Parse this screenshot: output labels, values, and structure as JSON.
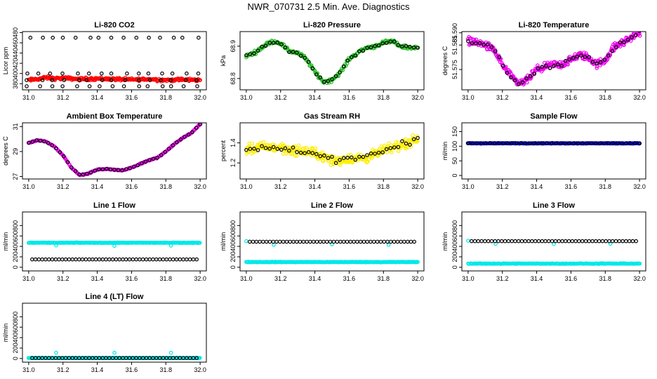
{
  "page_title": "NWR_070731  2.5 Min. Ave. Diagnostics",
  "chart_data": [
    {
      "type": "scatter",
      "title": "Li-820 CO2",
      "ylabel": "Licor ppm",
      "xlim": [
        30.98,
        32.02
      ],
      "ylim": [
        368,
        482
      ],
      "xticks": [
        "31.0",
        "31.2",
        "31.4",
        "31.6",
        "31.8",
        "32.0"
      ],
      "yticks": [
        380,
        400,
        420,
        440,
        460,
        480
      ],
      "series": [
        {
          "color": "#ff0000",
          "kind": "noisy",
          "x": [
            31.0,
            31.05,
            31.1,
            31.15,
            31.2,
            31.3,
            31.4,
            31.5,
            31.6,
            31.7,
            31.8,
            31.9,
            32.0
          ],
          "y": [
            387,
            389,
            392,
            390,
            391,
            389,
            390,
            389,
            388,
            389,
            387,
            388,
            387
          ],
          "noise": 4,
          "n": 260
        },
        {
          "color": "#000000",
          "kind": "pattern",
          "x": [
            31.0,
            31.07,
            31.14,
            31.21,
            31.28,
            31.35,
            31.42,
            31.49,
            31.56,
            31.63,
            31.7,
            31.77,
            31.84,
            31.91,
            31.98
          ],
          "levels": [
            375,
            387,
            400,
            470
          ]
        }
      ]
    },
    {
      "type": "scatter",
      "title": "Li-820 Pressure",
      "ylabel": "kPa",
      "xlim": [
        30.98,
        32.02
      ],
      "ylim": [
        68.765,
        68.945
      ],
      "xticks": [
        "31.0",
        "31.2",
        "31.4",
        "31.6",
        "31.8",
        "32.0"
      ],
      "yticks": [
        68.8,
        68.9
      ],
      "series": [
        {
          "color": "#22bb22",
          "kind": "noisy",
          "x": [
            31.0,
            31.05,
            31.1,
            31.15,
            31.2,
            31.25,
            31.3,
            31.35,
            31.4,
            31.45,
            31.5,
            31.55,
            31.6,
            31.65,
            31.7,
            31.75,
            31.8,
            31.85,
            31.9,
            31.95,
            32.0
          ],
          "y": [
            68.87,
            68.88,
            68.9,
            68.915,
            68.91,
            68.885,
            68.88,
            68.86,
            68.82,
            68.79,
            68.795,
            68.82,
            68.86,
            68.88,
            68.895,
            68.9,
            68.91,
            68.915,
            68.9,
            68.895,
            68.895
          ],
          "noise": 0.008,
          "n": 220
        },
        {
          "color": "#000000",
          "kind": "follow",
          "noise": 0.006,
          "n": 45
        }
      ]
    },
    {
      "type": "scatter",
      "title": "Li-820 Temperature",
      "ylabel": "degrees C",
      "xlim": [
        30.98,
        32.02
      ],
      "ylim": [
        51.5667,
        51.5905
      ],
      "xticks": [
        "31.0",
        "31.2",
        "31.4",
        "31.6",
        "31.8",
        "32.0"
      ],
      "yticks": [
        51.575,
        51.585,
        51.59
      ],
      "ytick_labels": [
        "51.575",
        "51.585",
        "51.590"
      ],
      "series": [
        {
          "color": "#ee00ee",
          "kind": "noisy",
          "x": [
            31.0,
            31.05,
            31.1,
            31.15,
            31.2,
            31.25,
            31.3,
            31.35,
            31.4,
            31.45,
            31.5,
            31.55,
            31.6,
            31.65,
            31.7,
            31.75,
            31.8,
            31.85,
            31.9,
            31.95,
            32.0
          ],
          "y": [
            51.587,
            51.586,
            51.585,
            51.583,
            51.577,
            51.572,
            51.569,
            51.571,
            51.575,
            51.576,
            51.577,
            51.577,
            51.579,
            51.581,
            51.58,
            51.577,
            51.579,
            51.584,
            51.586,
            51.588,
            51.59
          ],
          "noise": 0.0022,
          "n": 330
        },
        {
          "color": "#000000",
          "kind": "follow",
          "noise": 0.0012,
          "n": 45
        }
      ]
    },
    {
      "type": "scatter",
      "title": "Ambient Box Temperature",
      "ylabel": "degrees C",
      "xlim": [
        30.98,
        32.02
      ],
      "ylim": [
        26.8,
        31.3
      ],
      "xticks": [
        "31.0",
        "31.2",
        "31.4",
        "31.6",
        "31.8",
        "32.0"
      ],
      "yticks": [
        27,
        29,
        31
      ],
      "series": [
        {
          "color": "#ee00ee",
          "kind": "noisy",
          "x": [
            31.0,
            31.05,
            31.1,
            31.15,
            31.2,
            31.25,
            31.3,
            31.35,
            31.4,
            31.45,
            31.5,
            31.55,
            31.6,
            31.65,
            31.7,
            31.75,
            31.8,
            31.85,
            31.9,
            31.95,
            32.0
          ],
          "y": [
            29.7,
            29.9,
            29.8,
            29.4,
            28.7,
            27.7,
            27.1,
            27.25,
            27.55,
            27.6,
            27.55,
            27.5,
            27.7,
            28.0,
            28.3,
            28.5,
            29.0,
            29.6,
            30.1,
            30.5,
            31.2
          ],
          "noise": 0.05,
          "n": 260
        },
        {
          "color": "#000000",
          "kind": "follow",
          "noise": 0.03,
          "n": 45
        }
      ]
    },
    {
      "type": "scatter",
      "title": "Gas Stream RH",
      "ylabel": "percent",
      "xlim": [
        30.98,
        32.02
      ],
      "ylim": [
        1.04,
        1.6
      ],
      "xticks": [
        "31.0",
        "31.2",
        "31.4",
        "31.6",
        "31.8",
        "32.0"
      ],
      "yticks": [
        1.2,
        1.4
      ],
      "series": [
        {
          "color": "#ffee00",
          "kind": "noisy",
          "x": [
            31.0,
            31.1,
            31.2,
            31.3,
            31.4,
            31.5,
            31.6,
            31.7,
            31.8,
            31.9,
            32.0
          ],
          "y": [
            1.33,
            1.36,
            1.35,
            1.32,
            1.3,
            1.22,
            1.24,
            1.25,
            1.32,
            1.38,
            1.44
          ],
          "noise": 0.07,
          "n": 330
        },
        {
          "color": "#000000",
          "kind": "follow",
          "noise": 0.05,
          "n": 45
        }
      ]
    },
    {
      "type": "scatter",
      "title": "Sample Flow",
      "ylabel": "ml/min",
      "xlim": [
        30.98,
        32.02
      ],
      "ylim": [
        -12,
        180
      ],
      "xticks": [
        "31.0",
        "31.2",
        "31.4",
        "31.6",
        "31.8",
        "32.0"
      ],
      "yticks": [
        0,
        50,
        100,
        150
      ],
      "series": [
        {
          "color": "#0000cc",
          "kind": "noisy",
          "x": [
            31.0,
            32.0
          ],
          "y": [
            110,
            110
          ],
          "noise": 1.5,
          "n": 260
        },
        {
          "color": "#000000",
          "kind": "follow",
          "noise": 1,
          "n": 40
        }
      ]
    },
    {
      "type": "scatter",
      "title": "Line 1 Flow",
      "ylabel": "ml/min",
      "xlim": [
        30.98,
        32.02
      ],
      "ylim": [
        -70,
        1060
      ],
      "xticks": [
        "31.0",
        "31.2",
        "31.4",
        "31.6",
        "31.8",
        "32.0"
      ],
      "yticks": [
        0,
        200,
        400,
        600,
        800
      ],
      "series": [
        {
          "color": "#00e8e8",
          "kind": "noisy",
          "x": [
            31.0,
            32.0
          ],
          "y": [
            470,
            470
          ],
          "noise": 8,
          "n": 260,
          "outliers": [
            [
              31.16,
              420
            ],
            [
              31.5,
              410
            ],
            [
              31.83,
              415
            ]
          ]
        },
        {
          "color": "#000000",
          "kind": "follow_y",
          "y": 150,
          "n": 50
        }
      ]
    },
    {
      "type": "scatter",
      "title": "Line 2 Flow",
      "ylabel": "ml/min",
      "xlim": [
        30.98,
        32.02
      ],
      "ylim": [
        -70,
        1060
      ],
      "xticks": [
        "31.0",
        "31.2",
        "31.4",
        "31.6",
        "31.8",
        "32.0"
      ],
      "yticks": [
        0,
        200,
        400,
        600,
        800
      ],
      "series": [
        {
          "color": "#00e8e8",
          "kind": "noisy",
          "x": [
            31.0,
            32.0
          ],
          "y": [
            100,
            100
          ],
          "noise": 8,
          "n": 260,
          "outliers": [
            [
              31.0,
              500
            ],
            [
              31.16,
              430
            ],
            [
              31.5,
              440
            ],
            [
              31.83,
              430
            ]
          ]
        },
        {
          "color": "#000000",
          "kind": "follow_y",
          "y": 490,
          "n": 50
        }
      ]
    },
    {
      "type": "scatter",
      "title": "Line 3 Flow",
      "ylabel": "ml/min",
      "xlim": [
        30.98,
        32.02
      ],
      "ylim": [
        -70,
        1060
      ],
      "xticks": [
        "31.0",
        "31.2",
        "31.4",
        "31.6",
        "31.8",
        "32.0"
      ],
      "yticks": [
        0,
        200,
        400,
        600,
        800
      ],
      "series": [
        {
          "color": "#00e8e8",
          "kind": "noisy",
          "x": [
            31.0,
            32.0
          ],
          "y": [
            70,
            70
          ],
          "noise": 8,
          "n": 260,
          "outliers": [
            [
              31.0,
              510
            ],
            [
              31.16,
              450
            ],
            [
              31.5,
              445
            ],
            [
              31.83,
              450
            ]
          ]
        },
        {
          "color": "#000000",
          "kind": "follow_y",
          "y": 500,
          "n": 50
        }
      ]
    },
    {
      "type": "scatter",
      "title": "Line 4 (LT) Flow",
      "ylabel": "ml/min",
      "xlim": [
        30.98,
        32.02
      ],
      "ylim": [
        -70,
        1060
      ],
      "xticks": [
        "31.0",
        "31.2",
        "31.4",
        "31.6",
        "31.8",
        "32.0"
      ],
      "yticks": [
        0,
        200,
        400,
        600,
        800
      ],
      "series": [
        {
          "color": "#00e8e8",
          "kind": "noisy",
          "x": [
            31.0,
            32.0
          ],
          "y": [
            10,
            10
          ],
          "noise": 4,
          "n": 220,
          "outliers": [
            [
              31.16,
              110
            ],
            [
              31.5,
              110
            ],
            [
              31.83,
              110
            ]
          ]
        },
        {
          "color": "#000000",
          "kind": "follow_y",
          "y": 10,
          "n": 50
        }
      ]
    }
  ]
}
